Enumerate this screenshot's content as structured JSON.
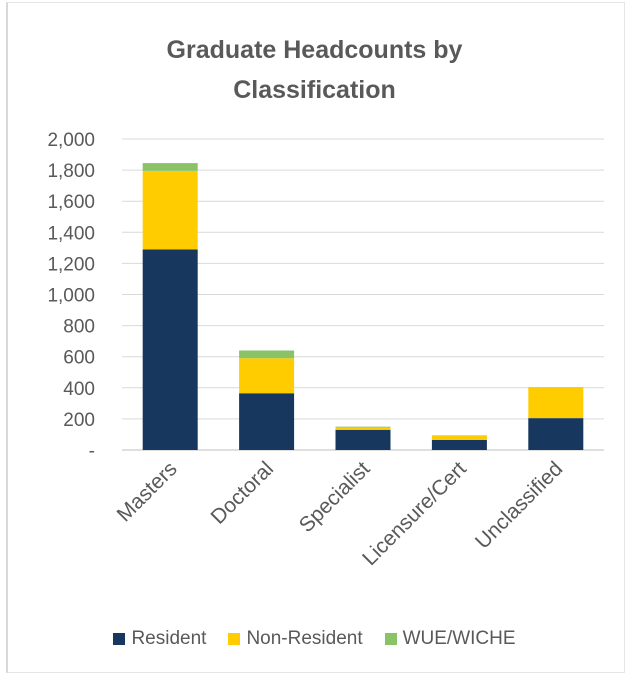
{
  "chart_data": {
    "type": "bar",
    "stacked": true,
    "title_line1": "Graduate Headcounts by",
    "title_line2": "Classification",
    "categories": [
      "Masters",
      "Doctoral",
      "Specialist",
      "Licensure/Cert",
      "Unclassified"
    ],
    "series": [
      {
        "name": "Resident",
        "color": "#17375e",
        "values": [
          1290,
          365,
          130,
          65,
          205
        ]
      },
      {
        "name": "Non-Resident",
        "color": "#ffcc00",
        "values": [
          505,
          225,
          15,
          30,
          200
        ]
      },
      {
        "name": "WUE/WICHE",
        "color": "#8ac267",
        "values": [
          50,
          50,
          5,
          0,
          0
        ]
      }
    ],
    "ylim": [
      0,
      2000
    ],
    "yticks": [
      0,
      200,
      400,
      600,
      800,
      1000,
      1200,
      1400,
      1600,
      1800,
      2000
    ],
    "ytick_labels": [
      "-",
      "200",
      "400",
      "600",
      "800",
      "1,000",
      "1,200",
      "1,400",
      "1,600",
      "1,800",
      "2,000"
    ],
    "grid": true,
    "legend_position": "bottom"
  }
}
